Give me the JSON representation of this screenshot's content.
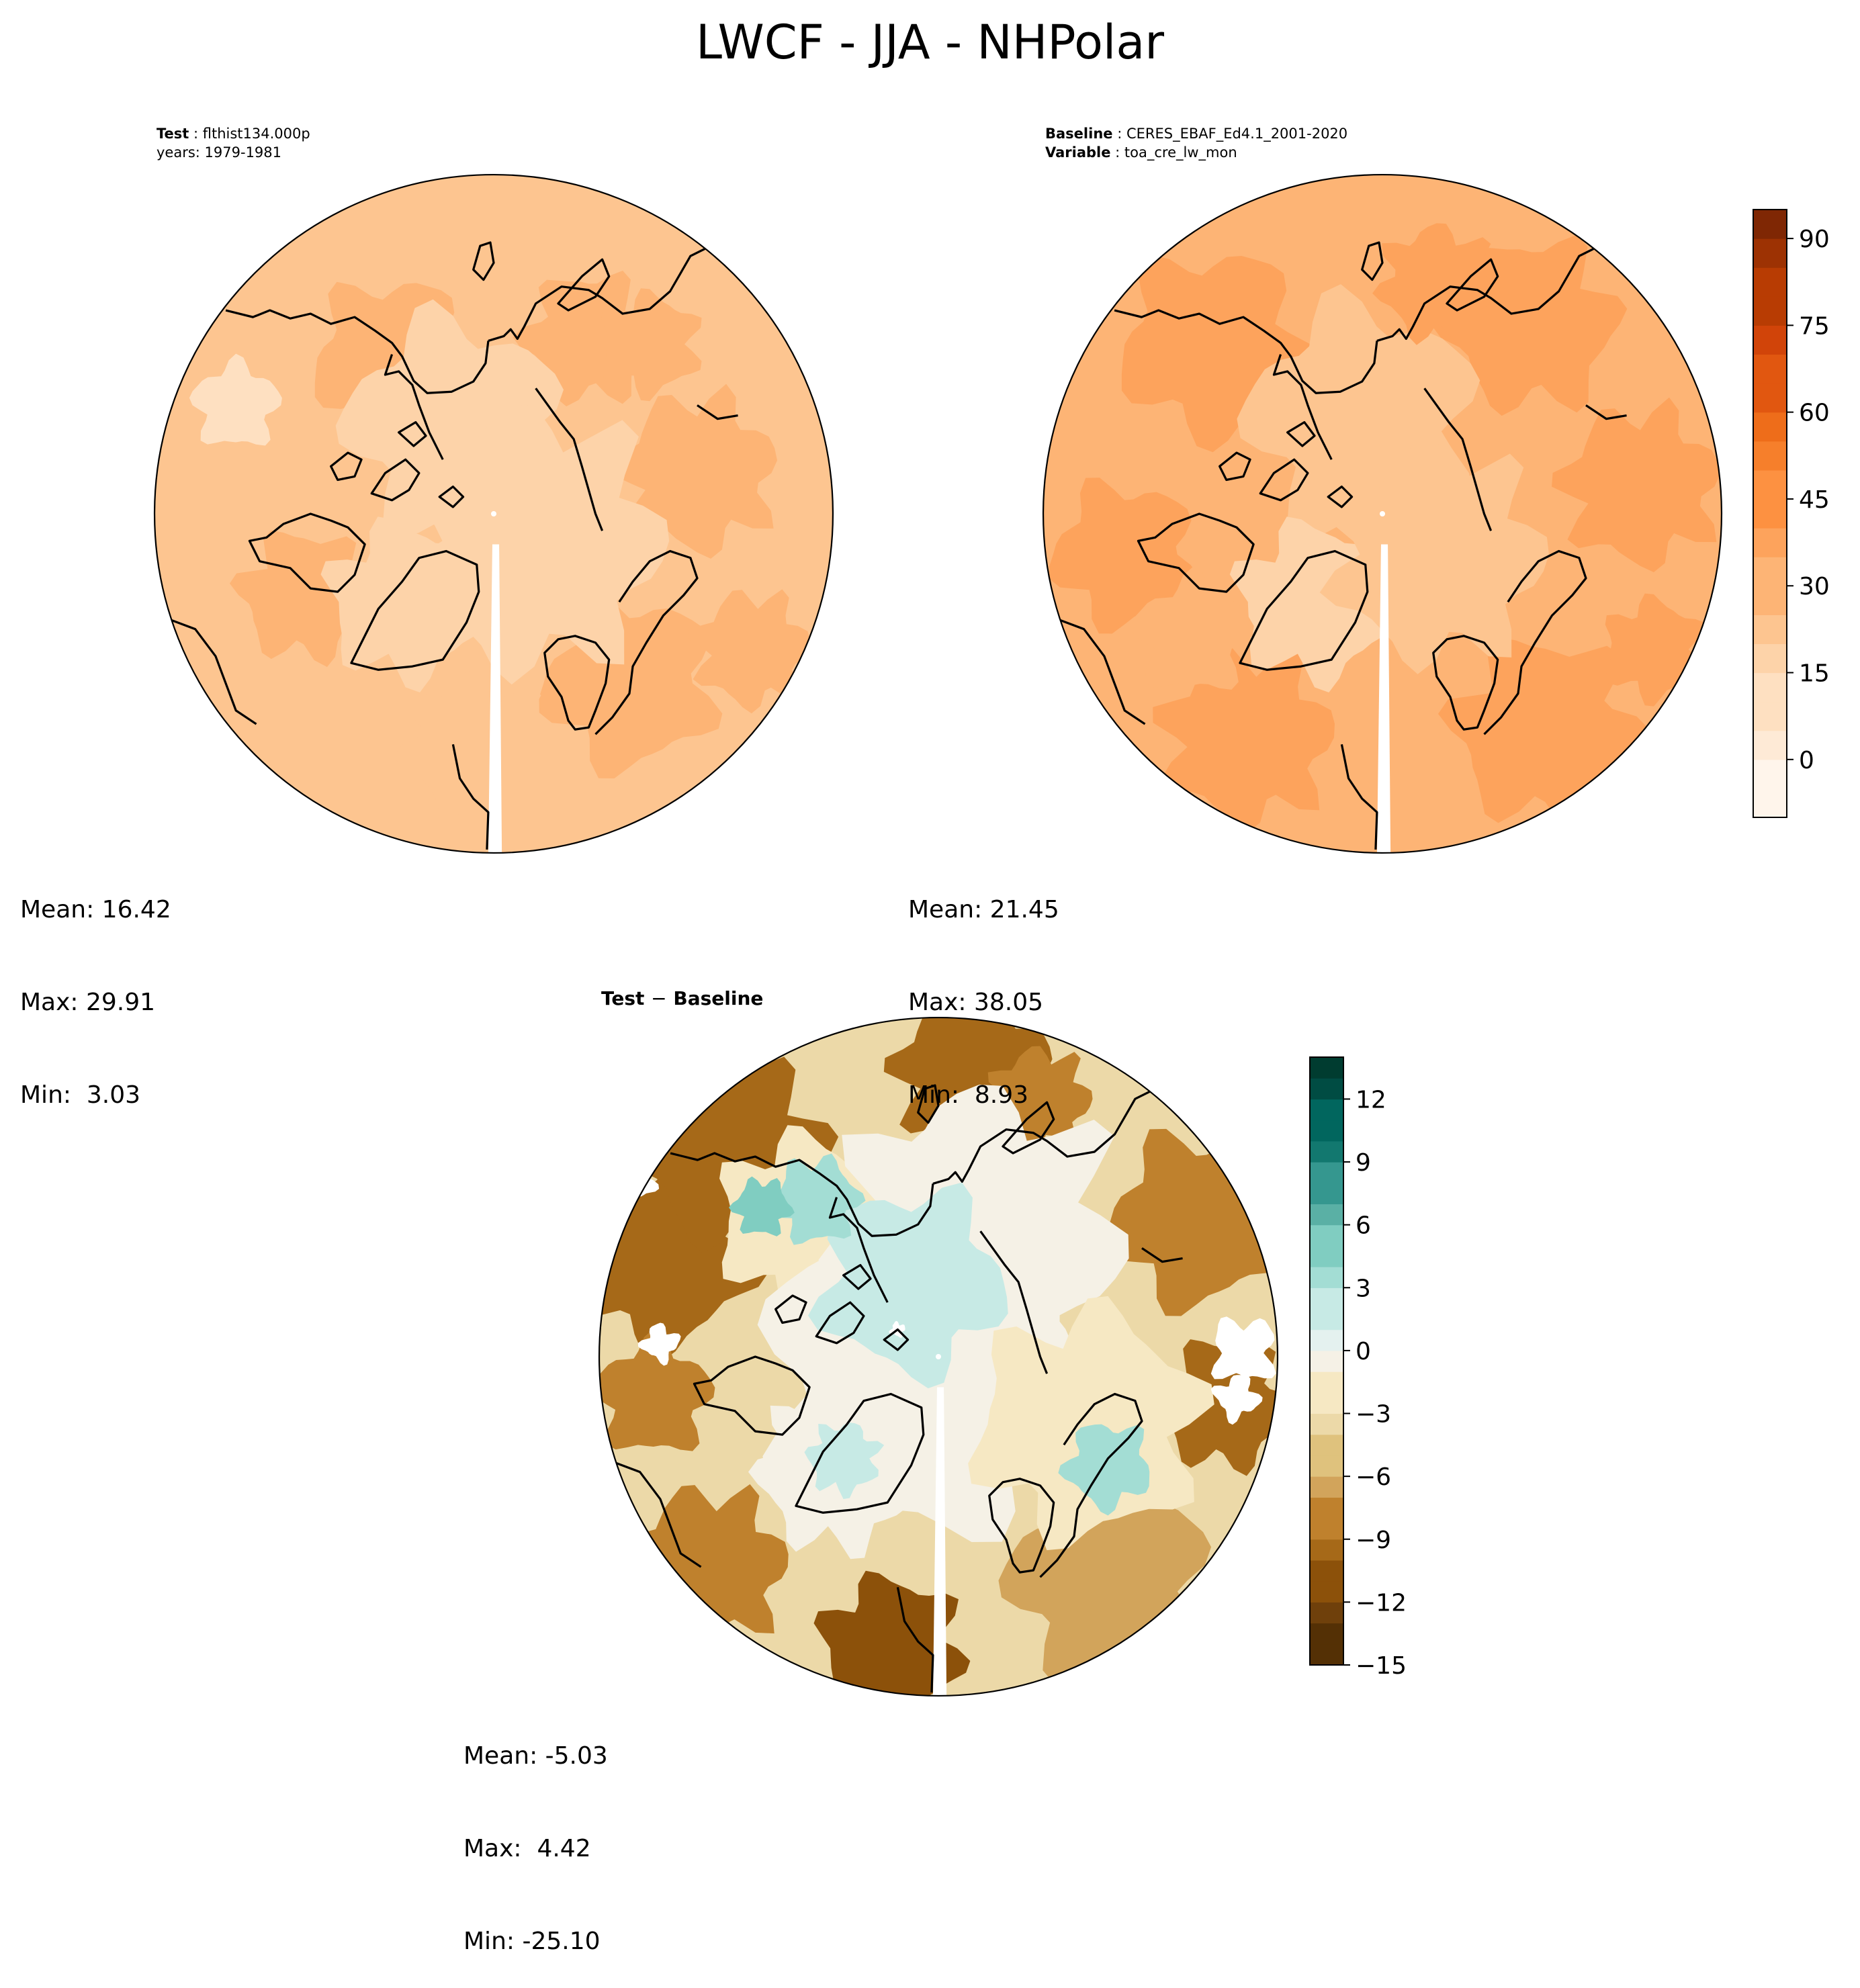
{
  "figure": {
    "title": "LWCF - JJA - NHPolar"
  },
  "test_panel": {
    "label_bold": "Test",
    "label_value": "flthist134.000p",
    "years_line": "years: 1979-1981",
    "stats": {
      "mean": "Mean: 16.42",
      "max": "Max: 29.91",
      "min": "Min:  3.03"
    }
  },
  "baseline_panel": {
    "label_bold": "Baseline",
    "label_value": "CERES_EBAF_Ed4.1_2001-2020",
    "variable_bold": "Variable",
    "variable_value": "toa_cre_lw_mon",
    "stats": {
      "mean": "Mean: 21.45",
      "max": "Max: 38.05",
      "min": "Min:  8.93"
    }
  },
  "diff_panel": {
    "title_left": "Test",
    "title_op": "−",
    "title_right": "Baseline",
    "stats": {
      "mean": "Mean: -5.03",
      "max": "Max:  4.42",
      "min": "Min: -25.10"
    }
  },
  "chart_data": [
    {
      "type": "heatmap",
      "title": "LWCF - JJA - NHPolar",
      "panel": "Test",
      "projection": "north-polar-stereographic",
      "stats": {
        "mean": 16.42,
        "max": 29.91,
        "min": 3.03
      },
      "colormap": "Oranges",
      "contour_levels_range": [
        -10,
        95
      ]
    },
    {
      "type": "heatmap",
      "panel": "Baseline",
      "projection": "north-polar-stereographic",
      "stats": {
        "mean": 21.45,
        "max": 38.05,
        "min": 8.93
      },
      "colormap": "Oranges",
      "colorbar": {
        "ticks": [
          0,
          15,
          30,
          45,
          60,
          75,
          90
        ],
        "range": [
          -10,
          95
        ]
      }
    },
    {
      "type": "heatmap",
      "panel": "Test − Baseline",
      "projection": "north-polar-stereographic",
      "stats": {
        "mean": -5.03,
        "max": 4.42,
        "min": -25.1
      },
      "colormap": "BrBG",
      "colorbar": {
        "ticks": [
          -15,
          -12,
          -9,
          -6,
          -3,
          0,
          3,
          6,
          9,
          12
        ],
        "range": [
          -15,
          14
        ]
      }
    }
  ],
  "colors": {
    "oranges": [
      "#fff5eb",
      "#feead6",
      "#fee0c1",
      "#fdd3a9",
      "#fdc590",
      "#fdb475",
      "#fda35c",
      "#fd9141",
      "#f67f2b",
      "#ee6d1a",
      "#e15710",
      "#d14409",
      "#b83c03",
      "#9d3203",
      "#7f2704"
    ],
    "brbg": [
      "#543005",
      "#6f400b",
      "#8c510a",
      "#a66918",
      "#bf812d",
      "#d2a45b",
      "#dfc27d",
      "#ecd9a8",
      "#f6e8c3",
      "#f5f1e6",
      "#e4f1ef",
      "#c7eae5",
      "#a3ddd4",
      "#80cdc1",
      "#5ab0a5",
      "#35978f",
      "#12786f",
      "#01665e",
      "#004c43",
      "#003c30"
    ]
  },
  "cbar_top": {
    "tick_labels": [
      "0",
      "15",
      "30",
      "45",
      "60",
      "75",
      "90"
    ]
  },
  "cbar_diff": {
    "tick_labels": [
      "−15",
      "−12",
      "−9",
      "−6",
      "−3",
      "0",
      "3",
      "6",
      "9",
      "12"
    ]
  }
}
